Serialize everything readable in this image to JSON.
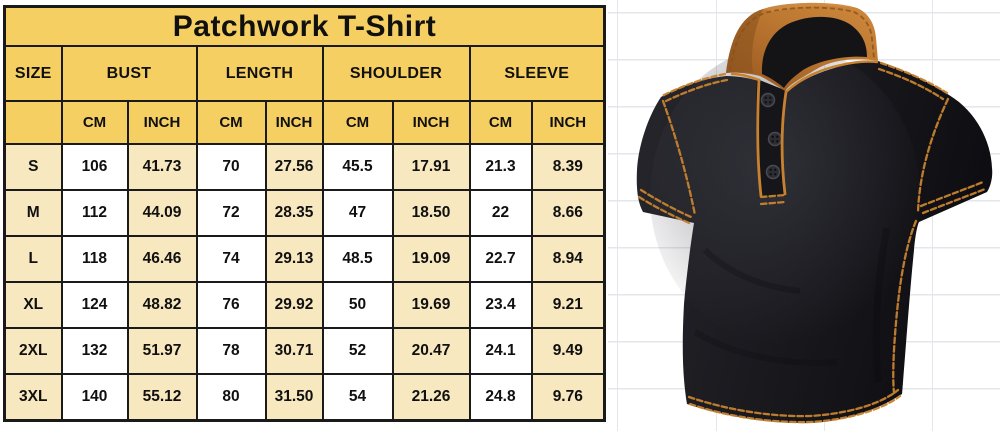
{
  "title": "Patchwork T-Shirt",
  "size_chart": {
    "group_headers": [
      {
        "label": "SIZE",
        "span": 1
      },
      {
        "label": "BUST",
        "span": 2
      },
      {
        "label": "LENGTH",
        "span": 2
      },
      {
        "label": "SHOULDER",
        "span": 2
      },
      {
        "label": "SLEEVE",
        "span": 2
      }
    ],
    "unit_row": [
      "",
      "CM",
      "INCH",
      "CM",
      "INCH",
      "CM",
      "INCH",
      "CM",
      "INCH"
    ],
    "rows": [
      [
        "S",
        "106",
        "41.73",
        "70",
        "27.56",
        "45.5",
        "17.91",
        "21.3",
        "8.39"
      ],
      [
        "M",
        "112",
        "44.09",
        "72",
        "28.35",
        "47",
        "18.50",
        "22",
        "8.66"
      ],
      [
        "L",
        "118",
        "46.46",
        "74",
        "29.13",
        "48.5",
        "19.09",
        "22.7",
        "8.94"
      ],
      [
        "XL",
        "124",
        "48.82",
        "76",
        "29.92",
        "50",
        "19.69",
        "23.4",
        "9.21"
      ],
      [
        "2XL",
        "132",
        "51.97",
        "78",
        "30.71",
        "52",
        "20.47",
        "24.1",
        "9.49"
      ],
      [
        "3XL",
        "140",
        "55.12",
        "80",
        "31.50",
        "54",
        "21.26",
        "24.8",
        "9.76"
      ]
    ]
  },
  "product_photo": {
    "name": "black-henley-shirt",
    "colors": {
      "body": "#1b1b20",
      "collar": "#bb7630",
      "stitching": "#c8822f",
      "buttons": "#2c2c33"
    }
  },
  "colors": {
    "header_yellow": "#f6cf63",
    "cell_cream": "#f8e8c0",
    "cell_white": "#ffffff",
    "table_border": "#1a1a1a",
    "grid_line": "#e3e6ea",
    "text": "#101010"
  }
}
